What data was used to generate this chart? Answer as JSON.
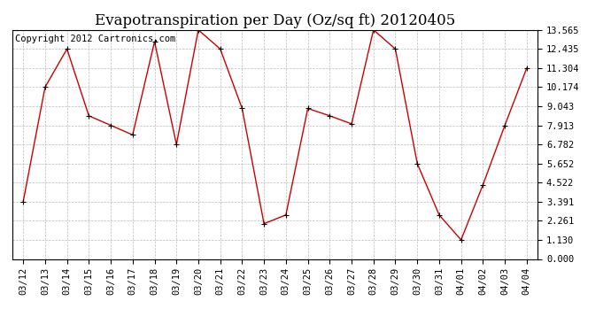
{
  "title": "Evapotranspiration per Day (Oz/sq ft) 20120405",
  "copyright_text": "Copyright 2012 Cartronics.com",
  "x_labels": [
    "03/12",
    "03/13",
    "03/14",
    "03/15",
    "03/16",
    "03/17",
    "03/18",
    "03/19",
    "03/20",
    "03/21",
    "03/22",
    "03/23",
    "03/24",
    "03/25",
    "03/26",
    "03/27",
    "03/28",
    "03/29",
    "03/30",
    "03/31",
    "04/01",
    "04/02",
    "04/03",
    "04/04"
  ],
  "y_values": [
    3.391,
    10.174,
    12.435,
    8.478,
    7.913,
    7.348,
    12.869,
    6.782,
    13.565,
    12.435,
    8.913,
    2.087,
    2.609,
    8.913,
    8.478,
    8.0,
    13.565,
    12.435,
    5.652,
    2.609,
    1.13,
    4.391,
    7.913,
    11.304
  ],
  "line_color": "#cc0000",
  "marker": "+",
  "marker_size": 5,
  "background_color": "#ffffff",
  "grid_color": "#bbbbbb",
  "yticks": [
    0.0,
    1.13,
    2.261,
    3.391,
    4.522,
    5.652,
    6.782,
    7.913,
    9.043,
    10.174,
    11.304,
    12.435,
    13.565
  ],
  "title_fontsize": 12,
  "copyright_fontsize": 7.5,
  "tick_fontsize": 7.5
}
